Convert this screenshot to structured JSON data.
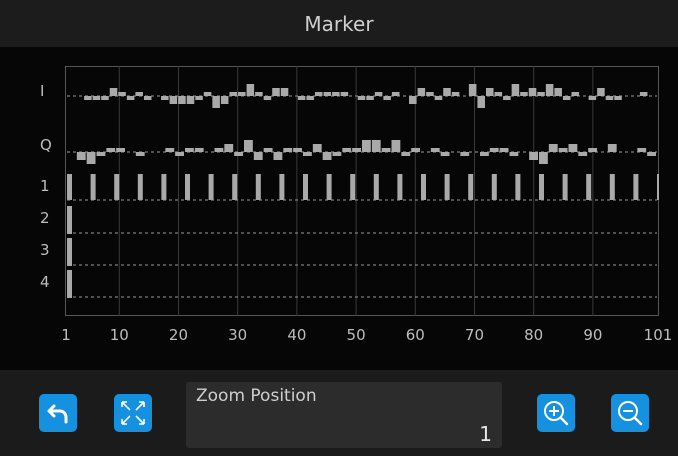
{
  "title": "Marker",
  "rows": [
    "I",
    "Q",
    "1",
    "2",
    "3",
    "4"
  ],
  "x_ticks": [
    "1",
    "10",
    "20",
    "30",
    "40",
    "50",
    "60",
    "70",
    "80",
    "90",
    "101"
  ],
  "chart_data": {
    "type": "bar",
    "x_range": [
      1,
      101
    ],
    "series": [
      {
        "name": "I",
        "values": [
          0,
          0,
          -1,
          -1,
          -1,
          2,
          1,
          -1,
          1,
          -1,
          0,
          -1,
          -2,
          -2,
          -2,
          -1,
          1,
          -3,
          -2,
          1,
          1,
          3,
          1,
          -1,
          2,
          2,
          0,
          -1,
          -1,
          1,
          1,
          1,
          1,
          0,
          -1,
          -1,
          1,
          -1,
          1,
          0,
          -2,
          2,
          1,
          -1,
          2,
          1,
          0,
          3,
          -3,
          2,
          1,
          -1,
          3,
          1,
          2,
          1,
          3,
          2,
          -1,
          1,
          0,
          -1,
          2,
          -1,
          -1,
          0,
          0,
          1,
          0
        ]
      },
      {
        "name": "Q",
        "values": [
          0,
          -2,
          -3,
          -1,
          1,
          1,
          0,
          -1,
          0,
          0,
          1,
          -1,
          1,
          1,
          0,
          1,
          2,
          -1,
          3,
          -2,
          1,
          -2,
          1,
          1,
          -1,
          2,
          -2,
          -1,
          1,
          1,
          3,
          3,
          1,
          3,
          -1,
          1,
          0,
          1,
          -1,
          0,
          -1,
          0,
          -1,
          1,
          1,
          -1,
          0,
          -2,
          -3,
          2,
          1,
          2,
          -1,
          1,
          0,
          2,
          0,
          0,
          1,
          -1
        ]
      },
      {
        "name": "1",
        "values": [
          1,
          1,
          1,
          1,
          1,
          1,
          1,
          1,
          1,
          1,
          1,
          1,
          1,
          1,
          1,
          1,
          1,
          1,
          1,
          1,
          1,
          1,
          1,
          1,
          1,
          1,
          1,
          1,
          1,
          1,
          1,
          1,
          1,
          1,
          1,
          1,
          1,
          1,
          1,
          1,
          1,
          1,
          1,
          1,
          1,
          1,
          1,
          1,
          1,
          1,
          1
        ]
      },
      {
        "name": "2",
        "values": [
          1
        ]
      },
      {
        "name": "3",
        "values": [
          1
        ]
      },
      {
        "name": "4",
        "values": [
          1
        ]
      }
    ]
  },
  "zoom": {
    "label": "Zoom Position",
    "value": "1"
  },
  "colors": {
    "accent": "#1691e0",
    "bar": "#a9a9a9",
    "grid": "#3a3a3a"
  },
  "icons": [
    "undo-icon",
    "fit-screen-icon",
    "zoom-in-icon",
    "zoom-out-icon"
  ]
}
